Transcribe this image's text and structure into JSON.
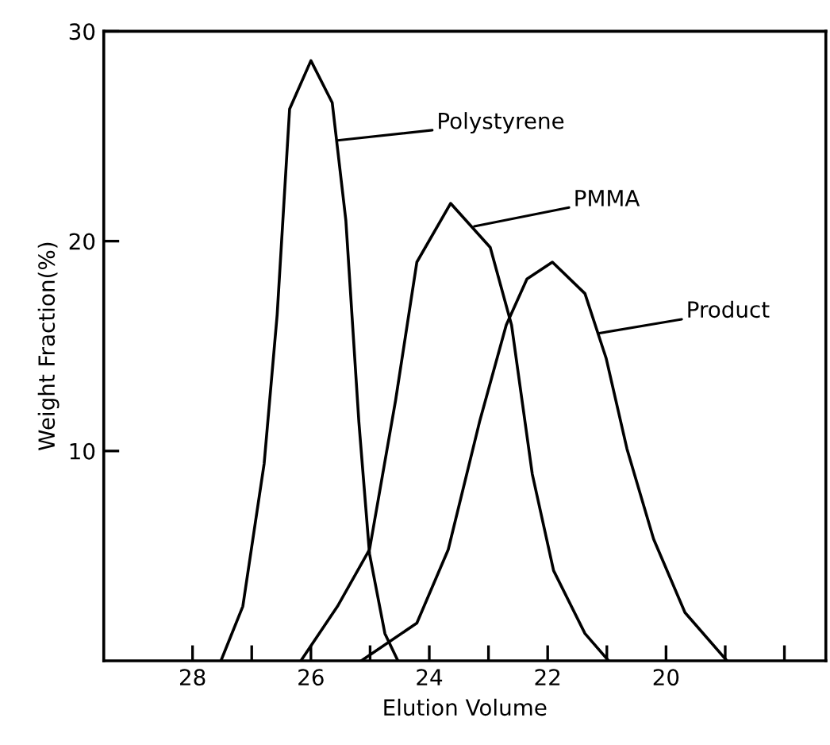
{
  "chart_data": {
    "type": "line",
    "xlabel": "Elution Volume",
    "ylabel": "Weight Fraction(%)",
    "xlim": [
      29.5,
      17.3
    ],
    "ylim": [
      0,
      30
    ],
    "xticks": [
      {
        "value": 28,
        "label": "28"
      },
      {
        "value": 27,
        "label": null
      },
      {
        "value": 26,
        "label": "26"
      },
      {
        "value": 25,
        "label": null
      },
      {
        "value": 24,
        "label": "24"
      },
      {
        "value": 23,
        "label": null
      },
      {
        "value": 22,
        "label": "22"
      },
      {
        "value": 21,
        "label": null
      },
      {
        "value": 20,
        "label": "20"
      },
      {
        "value": 19,
        "label": null
      },
      {
        "value": 18,
        "label": null
      }
    ],
    "yticks": [
      10,
      20,
      30
    ],
    "grid": false,
    "series": [
      {
        "color": "#000000",
        "x": [
          27.52,
          27.15,
          26.79,
          26.57,
          26.36,
          26.0,
          25.64,
          25.41,
          25.19,
          25.01,
          24.75,
          24.53
        ],
        "values": [
          0,
          2.6,
          9.4,
          16.5,
          26.3,
          28.6,
          26.6,
          21.0,
          11.4,
          5.1,
          1.3,
          0
        ]
      },
      {
        "color": "#000000",
        "x": [
          26.17,
          25.55,
          25.01,
          24.57,
          24.21,
          23.64,
          22.97,
          22.61,
          22.26,
          21.9,
          21.37,
          20.97
        ],
        "values": [
          0,
          2.6,
          5.3,
          12.4,
          19.0,
          21.8,
          19.7,
          16.0,
          8.9,
          4.3,
          1.3,
          0
        ]
      },
      {
        "color": "#000000",
        "x": [
          25.15,
          24.21,
          23.68,
          23.15,
          22.7,
          22.35,
          21.92,
          21.37,
          21.01,
          20.66,
          20.21,
          19.68,
          18.97
        ],
        "values": [
          0,
          1.8,
          5.3,
          11.4,
          16.0,
          18.2,
          19.0,
          17.5,
          14.4,
          10.1,
          5.8,
          2.3,
          0
        ]
      }
    ],
    "annotations": [
      {
        "text": "Polystyrene",
        "x": 25.55,
        "y": 24.8
      },
      {
        "text": "PMMA",
        "x": 23.24,
        "y": 20.7
      },
      {
        "text": "Product",
        "x": 21.15,
        "y": 15.6
      }
    ]
  }
}
